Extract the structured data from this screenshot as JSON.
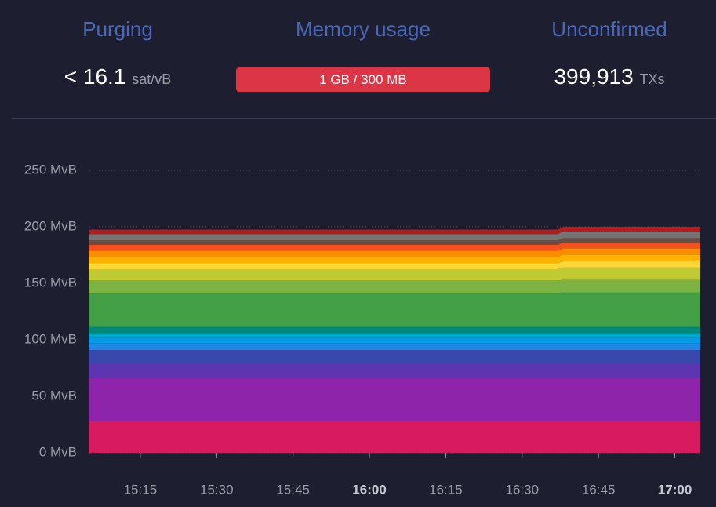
{
  "header": {
    "stats": [
      {
        "title": "Purging",
        "value": "< 16.1",
        "unit": "sat/vB"
      },
      {
        "title": "Memory usage",
        "value": "1 GB / 300 MB"
      },
      {
        "title": "Unconfirmed",
        "value": "399,913",
        "unit": "TXs"
      }
    ]
  },
  "chart_data": {
    "type": "stacked-area",
    "x": [
      "15:05",
      "16:37",
      "16:38",
      "17:05"
    ],
    "xlim": [
      "15:05",
      "17:05"
    ],
    "xticks": [
      "15:15",
      "15:30",
      "15:45",
      "16:00",
      "16:15",
      "16:30",
      "16:45",
      "17:00"
    ],
    "ylim": [
      0,
      250
    ],
    "yticks": [
      {
        "value": 0,
        "label": "0 MvB"
      },
      {
        "value": 50,
        "label": "50 MvB"
      },
      {
        "value": 100,
        "label": "100 MvB"
      },
      {
        "value": 150,
        "label": "150 MvB"
      },
      {
        "value": 200,
        "label": "200 MvB"
      },
      {
        "value": 250,
        "label": "250 MvB"
      }
    ],
    "grid": true,
    "series": [
      {
        "color": "#d81b60",
        "values": [
          28,
          28,
          28,
          28
        ]
      },
      {
        "color": "#8e24aa",
        "values": [
          38,
          38,
          38,
          38
        ]
      },
      {
        "color": "#5e35b1",
        "values": [
          12.5,
          12.5,
          12.5,
          12.5
        ]
      },
      {
        "color": "#3949ab",
        "values": [
          12.5,
          12.5,
          12.5,
          12.5
        ]
      },
      {
        "color": "#1e88e5",
        "values": [
          6,
          6,
          6,
          6
        ]
      },
      {
        "color": "#039be5",
        "values": [
          5,
          5,
          5,
          5
        ]
      },
      {
        "color": "#00acc1",
        "values": [
          4,
          4,
          4,
          4
        ]
      },
      {
        "color": "#00897b",
        "values": [
          5.5,
          5.5,
          5.5,
          5.5
        ]
      },
      {
        "color": "#43a047",
        "values": [
          30,
          30,
          30.5,
          30.5
        ]
      },
      {
        "color": "#7cb342",
        "values": [
          11,
          11,
          11,
          11
        ]
      },
      {
        "color": "#c0ca33",
        "values": [
          10,
          10,
          11,
          11
        ]
      },
      {
        "color": "#fdd835",
        "values": [
          5.5,
          5.5,
          5.5,
          5.5
        ]
      },
      {
        "color": "#ffb300",
        "values": [
          5.5,
          5.5,
          6,
          6
        ]
      },
      {
        "color": "#fb8c00",
        "values": [
          5.5,
          5.5,
          5.5,
          5.5
        ]
      },
      {
        "color": "#f4511e",
        "values": [
          5,
          5,
          5,
          5
        ]
      },
      {
        "color": "#6d4c41",
        "values": [
          4,
          4,
          4,
          4
        ]
      },
      {
        "color": "#757575",
        "values": [
          5.5,
          5.5,
          6,
          6
        ]
      },
      {
        "color": "#b71c1c",
        "values": [
          4,
          4,
          4,
          4
        ]
      }
    ]
  }
}
